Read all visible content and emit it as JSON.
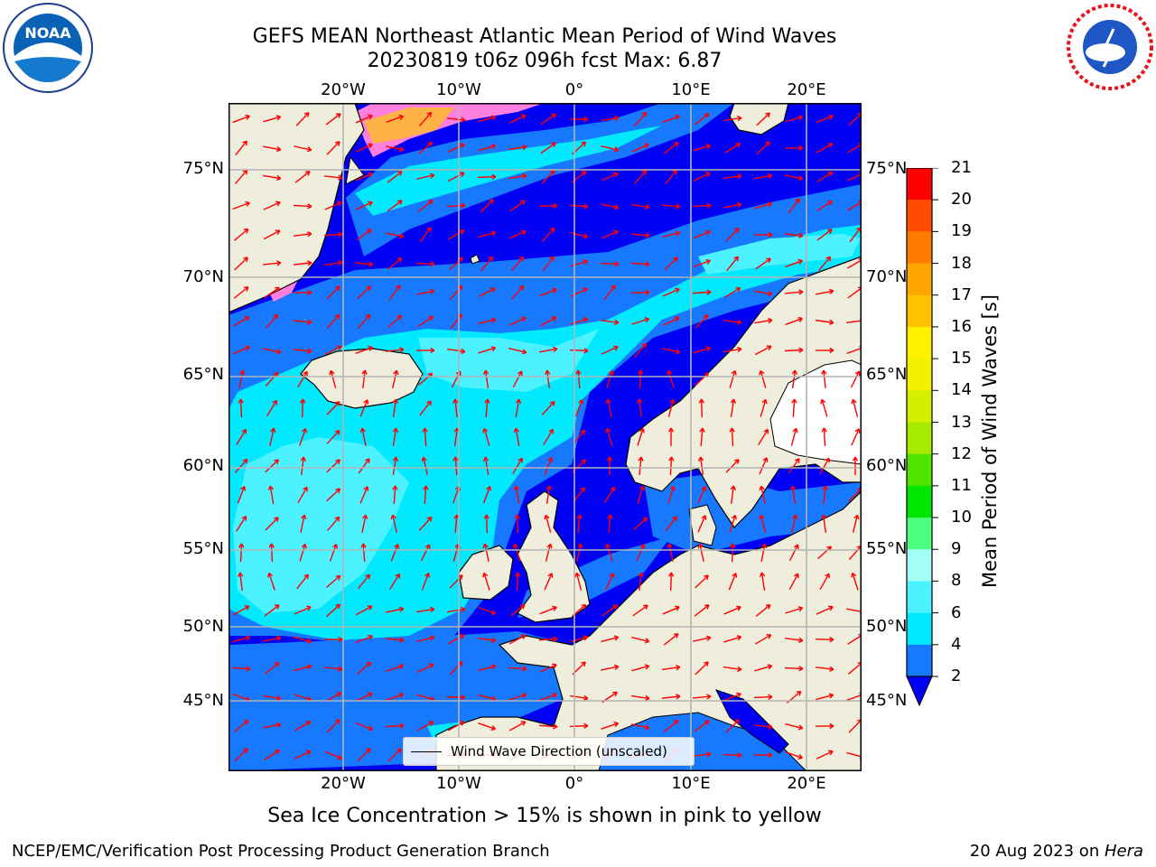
{
  "title": {
    "line1": "GEFS MEAN Northeast Atlantic Mean Period of Wind Waves",
    "line2": "20230819 t06z 096h fcst    Max: 6.87"
  },
  "map": {
    "lon_labels": [
      "20°W",
      "10°W",
      "0°",
      "10°E",
      "20°E"
    ],
    "lat_labels": [
      "75°N",
      "70°N",
      "65°N",
      "60°N",
      "55°N",
      "50°N",
      "45°N"
    ],
    "legend_label": "Wind Wave Direction (unscaled)",
    "colors": {
      "land": "#efeedd",
      "ocean_blue": "#0000f5",
      "ocean_mid": "#1779ff",
      "ocean_cyan": "#00e9ff",
      "ocean_light": "#4cf2ff",
      "arrow": "#ff0000",
      "ice_pink": "#ff7fdf",
      "ice_orange": "#ffb347",
      "grid": "#b4b4b4"
    }
  },
  "colorbar": {
    "title": "Mean Period of Wind Waves [s]",
    "levels": [
      "2",
      "4",
      "6",
      "8",
      "9",
      "10",
      "11",
      "12",
      "13",
      "14",
      "15",
      "16",
      "17",
      "18",
      "19",
      "20",
      "21"
    ],
    "colors": [
      "#1779ff",
      "#00e9ff",
      "#4cf2ff",
      "#a4fff6",
      "#4dff7d",
      "#00e600",
      "#4fe300",
      "#a6ea00",
      "#d4f000",
      "#f2f200",
      "#fff000",
      "#ffc200",
      "#ffa500",
      "#ff7b00",
      "#ff4c00",
      "#ff0000"
    ],
    "underflow_color": "#0000f5"
  },
  "caption": "Sea Ice Concentration > 15% is shown in pink to yellow",
  "footer": {
    "left": "NCEP/EMC/Verification Post Processing Product Generation Branch",
    "right_date": "20 Aug 2023 on ",
    "right_host": "Hera"
  },
  "logos": {
    "noaa": "NOAA",
    "nws": "NATIONAL WEATHER SERVICE"
  }
}
